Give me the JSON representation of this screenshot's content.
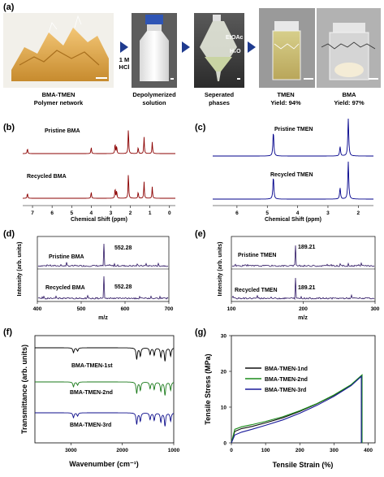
{
  "panels": {
    "a": {
      "label": "(a)",
      "photo1_line1": "BMA-TMEN",
      "photo1_line2": "Polymer network",
      "arrow1_line1": "1 M",
      "arrow1_line2": "HCl",
      "photo2_line1": "Depolymerized",
      "photo2_line2": "solution",
      "etoac": "EtOAc",
      "h2o": "H₂O",
      "photo3_line1": "Seperated",
      "photo3_line2": "phases",
      "photo4_line1": "TMEN",
      "photo4_line2": "Yield: 94%",
      "photo5_line1": "BMA",
      "photo5_line2": "Yield: 97%"
    },
    "b": {
      "label": "(b)",
      "pristine": "Pristine BMA",
      "recycled": "Recycled BMA",
      "xlabel": "Chemical Shift (ppm)"
    },
    "c": {
      "label": "(c)",
      "pristine": "Pristine TMEN",
      "recycled": "Recycled TMEN",
      "xlabel": "Chemical Shift (ppm)"
    },
    "d": {
      "label": "(d)",
      "pristine": "Pristine BMA",
      "recycled": "Recycled BMA",
      "peak1": "552.28",
      "peak2": "552.28",
      "xlabel": "m/z",
      "ylabel": "Intensity (arb. units)"
    },
    "e": {
      "label": "(e)",
      "pristine": "Pristine TMEN",
      "recycled": "Recycled TMEN",
      "peak1": "189.21",
      "peak2": "189.21",
      "xlabel": "m/z",
      "ylabel": "Intensity (arb. units)"
    },
    "f": {
      "label": "(f)",
      "s1": "BMA-TMEN-1st",
      "s2": "BMA-TMEN-2nd",
      "s3": "BMA-TMEN-3rd",
      "xlabel": "Wavenumber (cm⁻¹)",
      "ylabel": "Transmittance (arb. units)"
    },
    "g": {
      "label": "(g)",
      "s1": "BMA-TMEN-1nd",
      "s2": "BMA-TMEN-2nd",
      "s3": "BMA-TMEN-3rd",
      "xlabel": "Tensile Strain (%)",
      "ylabel": "Tensile Stress (MPa)"
    }
  },
  "chart_data": [
    {
      "panel": "b",
      "type": "line",
      "xlabel": "Chemical Shift (ppm)",
      "xlim": [
        7.5,
        -0.3
      ],
      "xticks": [
        7,
        6,
        5,
        4,
        3,
        2,
        1,
        0
      ],
      "series": [
        {
          "name": "Pristine BMA",
          "peaks": [
            [
              7.26,
              0.2
            ],
            [
              4.0,
              0.25
            ],
            [
              2.78,
              0.4
            ],
            [
              2.7,
              0.3
            ],
            [
              2.1,
              1.0
            ],
            [
              1.6,
              0.25
            ],
            [
              1.3,
              0.65
            ],
            [
              0.88,
              0.45
            ]
          ]
        },
        {
          "name": "Recycled BMA",
          "peaks": [
            [
              7.26,
              0.2
            ],
            [
              4.0,
              0.25
            ],
            [
              2.78,
              0.4
            ],
            [
              2.7,
              0.3
            ],
            [
              2.1,
              1.0
            ],
            [
              1.6,
              0.25
            ],
            [
              1.3,
              0.65
            ],
            [
              0.88,
              0.45
            ]
          ]
        }
      ]
    },
    {
      "panel": "c",
      "type": "line",
      "xlabel": "Chemical Shift (ppm)",
      "xlim": [
        6.8,
        1.5
      ],
      "xticks": [
        6,
        5,
        4,
        3,
        2
      ],
      "series": [
        {
          "name": "Pristine TMEN",
          "peaks": [
            [
              4.8,
              0.65
            ],
            [
              2.6,
              0.25
            ],
            [
              2.33,
              1.0
            ]
          ]
        },
        {
          "name": "Recycled TMEN",
          "peaks": [
            [
              4.8,
              0.6
            ],
            [
              2.6,
              0.3
            ],
            [
              2.33,
              1.0
            ]
          ]
        }
      ]
    },
    {
      "panel": "d",
      "type": "line",
      "xlabel": "m/z",
      "ylabel": "Intensity (arb. units)",
      "xlim": [
        400,
        700
      ],
      "xticks": [
        400,
        500,
        600,
        700
      ],
      "series": [
        {
          "name": "Pristine BMA",
          "peak_mz": 552.28
        },
        {
          "name": "Recycled BMA",
          "peak_mz": 552.28
        }
      ]
    },
    {
      "panel": "e",
      "type": "line",
      "xlabel": "m/z",
      "ylabel": "Intensity (arb. units)",
      "xlim": [
        100,
        300
      ],
      "xticks": [
        100,
        200,
        300
      ],
      "series": [
        {
          "name": "Pristine TMEN",
          "peak_mz": 189.21
        },
        {
          "name": "Recycled TMEN",
          "peak_mz": 189.21
        }
      ]
    },
    {
      "panel": "f",
      "type": "line",
      "xlabel": "Wavenumber (cm⁻¹)",
      "ylabel": "Transmittance (arb. units)",
      "xlim": [
        3700,
        1000
      ],
      "xticks": [
        3000,
        2000,
        1000
      ],
      "bands": [
        2950,
        2870,
        1720,
        1650,
        1460,
        1380,
        1250,
        1170,
        1060
      ],
      "series": [
        {
          "name": "BMA-TMEN-1st"
        },
        {
          "name": "BMA-TMEN-2nd"
        },
        {
          "name": "BMA-TMEN-3rd"
        }
      ]
    },
    {
      "panel": "g",
      "type": "line",
      "xlabel": "Tensile Strain (%)",
      "ylabel": "Tensile Stress (MPa)",
      "xlim": [
        0,
        420
      ],
      "ylim": [
        0,
        30
      ],
      "xticks": [
        0,
        100,
        200,
        300,
        400
      ],
      "yticks": [
        0,
        10,
        20,
        30
      ],
      "series": [
        {
          "name": "BMA-TMEN-1nd",
          "x": [
            0,
            10,
            30,
            60,
            100,
            150,
            200,
            250,
            300,
            350,
            380,
            380
          ],
          "y": [
            0,
            3.2,
            4.0,
            4.6,
            5.6,
            7.0,
            8.8,
            10.9,
            13.3,
            16.2,
            18.8,
            0
          ]
        },
        {
          "name": "BMA-TMEN-2nd",
          "x": [
            0,
            10,
            30,
            60,
            100,
            150,
            200,
            250,
            300,
            350,
            382,
            382
          ],
          "y": [
            0,
            3.8,
            4.5,
            5.1,
            6.0,
            7.3,
            9.0,
            11.0,
            13.4,
            16.3,
            19.0,
            0
          ]
        },
        {
          "name": "BMA-TMEN-3rd",
          "x": [
            0,
            10,
            30,
            60,
            100,
            150,
            200,
            250,
            300,
            350,
            380,
            380
          ],
          "y": [
            0,
            2.2,
            3.0,
            3.8,
            4.9,
            6.4,
            8.3,
            10.5,
            13.0,
            16.0,
            18.6,
            0
          ]
        }
      ]
    }
  ]
}
